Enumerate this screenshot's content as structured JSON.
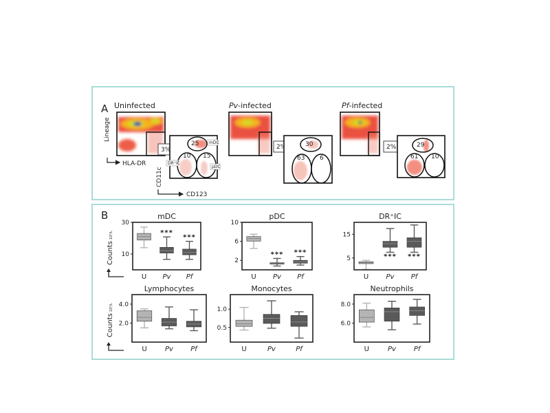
{
  "panel_a": {
    "letter": "A",
    "axis_lineage": "Lineage",
    "axis_hladr": "HLA-DR",
    "axis_cd11c": "CD11c",
    "axis_cd123": "CD123",
    "tags": {
      "mdc": "mDC",
      "dric": "DR⁺IC",
      "pdc": "pDC"
    },
    "groups": [
      {
        "title_prefix": "",
        "title": "Uninfected",
        "gate_pct": "3%",
        "mdc": "25",
        "dric": "10",
        "pdc": "15"
      },
      {
        "title_prefix": "Pv",
        "title": "-infected",
        "gate_pct": "2%",
        "mdc": "30",
        "dric": "63",
        "pdc": "6"
      },
      {
        "title_prefix": "Pf",
        "title": "-infected",
        "gate_pct": "2%",
        "mdc": "29",
        "dric": "61",
        "pdc": "10"
      }
    ],
    "colors": {
      "low": "#e8341c",
      "mid": "#f7b21c",
      "high": "#c7e02a",
      "peak": "#1b3fa8"
    }
  },
  "panel_b": {
    "letter": "B",
    "ylabel": "Counts",
    "ylabel_unit": "10⁹/L",
    "significance": "***",
    "colors": {
      "U": "#b4b4b4",
      "Pv": "#5a5a5a",
      "Pf": "#5a5a5a",
      "border": "#a9dcd8"
    }
  },
  "chart_data": [
    {
      "type": "box",
      "title": "mDC",
      "categories": [
        "U",
        "Pv",
        "Pf"
      ],
      "ylim": [
        0,
        30
      ],
      "yticks": [
        "10",
        "30"
      ],
      "ytick_values": [
        10,
        30
      ],
      "boxes": [
        {
          "min": 14,
          "q1": 18.8,
          "median": 21,
          "q3": 23,
          "max": 27
        },
        {
          "min": 6.6,
          "q1": 10.6,
          "median": 12,
          "q3": 14.2,
          "max": 20.8
        },
        {
          "min": 6.6,
          "q1": 9.5,
          "median": 11,
          "q3": 13.1,
          "max": 18
        }
      ],
      "stars": [
        null,
        "above",
        "above"
      ]
    },
    {
      "type": "box",
      "title": "pDC",
      "categories": [
        "U",
        "Pv",
        "Pf"
      ],
      "ylim": [
        0,
        10
      ],
      "yticks": [
        "2",
        "6",
        "10"
      ],
      "ytick_values": [
        2,
        6,
        10
      ],
      "boxes": [
        {
          "min": 4.5,
          "q1": 6.05,
          "median": 6.6,
          "q3": 7.0,
          "max": 7.5
        },
        {
          "min": 0.8,
          "q1": 1.2,
          "median": 1.35,
          "q3": 1.5,
          "max": 2.4
        },
        {
          "min": 1.0,
          "q1": 1.4,
          "median": 1.7,
          "q3": 2.0,
          "max": 2.8
        }
      ],
      "stars": [
        null,
        "above",
        "above"
      ]
    },
    {
      "type": "box",
      "title": "DR⁺IC",
      "categories": [
        "U",
        "Pv",
        "Pf"
      ],
      "ylim": [
        0,
        20
      ],
      "yticks": [
        "5",
        "15"
      ],
      "ytick_values": [
        5,
        15
      ],
      "boxes": [
        {
          "min": 0.2,
          "q1": 2.6,
          "median": 3,
          "q3": 3.4,
          "max": 4
        },
        {
          "min": 7.4,
          "q1": 9.5,
          "median": 11,
          "q3": 12,
          "max": 17.4
        },
        {
          "min": 7.4,
          "q1": 9.5,
          "median": 12,
          "q3": 13.5,
          "max": 18.9
        }
      ],
      "stars": [
        null,
        "below",
        "below"
      ]
    },
    {
      "type": "box",
      "title": "Lymphocytes",
      "categories": [
        "U",
        "Pv",
        "Pf"
      ],
      "ylim": [
        0,
        5
      ],
      "yticks": [
        "2.0",
        "4.0"
      ],
      "ytick_values": [
        2,
        4
      ],
      "boxes": [
        {
          "min": 1.5,
          "q1": 2.2,
          "median": 2.6,
          "q3": 3.3,
          "max": 3.5
        },
        {
          "min": 1.4,
          "q1": 1.7,
          "median": 2.1,
          "q3": 2.5,
          "max": 3.7
        },
        {
          "min": 1.2,
          "q1": 1.6,
          "median": 1.9,
          "q3": 2.2,
          "max": 3.4
        }
      ],
      "stars": [
        null,
        null,
        null
      ]
    },
    {
      "type": "box",
      "title": "Monocytes",
      "categories": [
        "U",
        "Pv",
        "Pf"
      ],
      "ylim": [
        0.1,
        1.4
      ],
      "yticks": [
        "0.5",
        "1.0"
      ],
      "ytick_values": [
        0.5,
        1.0
      ],
      "boxes": [
        {
          "min": 0.43,
          "q1": 0.53,
          "median": 0.6,
          "q3": 0.7,
          "max": 1.05
        },
        {
          "min": 0.48,
          "q1": 0.61,
          "median": 0.75,
          "q3": 0.86,
          "max": 1.23
        },
        {
          "min": 0.21,
          "q1": 0.53,
          "median": 0.65,
          "q3": 0.83,
          "max": 0.93
        }
      ],
      "stars": [
        null,
        null,
        null
      ]
    },
    {
      "type": "box",
      "title": "Neutrophils",
      "categories": [
        "U",
        "Pv",
        "Pf"
      ],
      "ylim": [
        4,
        9
      ],
      "yticks": [
        "6.0",
        "8.0"
      ],
      "ytick_values": [
        6,
        8
      ],
      "boxes": [
        {
          "min": 5.6,
          "q1": 6.1,
          "median": 6.6,
          "q3": 7.4,
          "max": 8.1
        },
        {
          "min": 5.3,
          "q1": 6.2,
          "median": 7.2,
          "q3": 7.6,
          "max": 8.3
        },
        {
          "min": 5.9,
          "q1": 6.8,
          "median": 7.3,
          "q3": 7.7,
          "max": 8.5
        }
      ],
      "stars": [
        null,
        null,
        null
      ]
    }
  ]
}
